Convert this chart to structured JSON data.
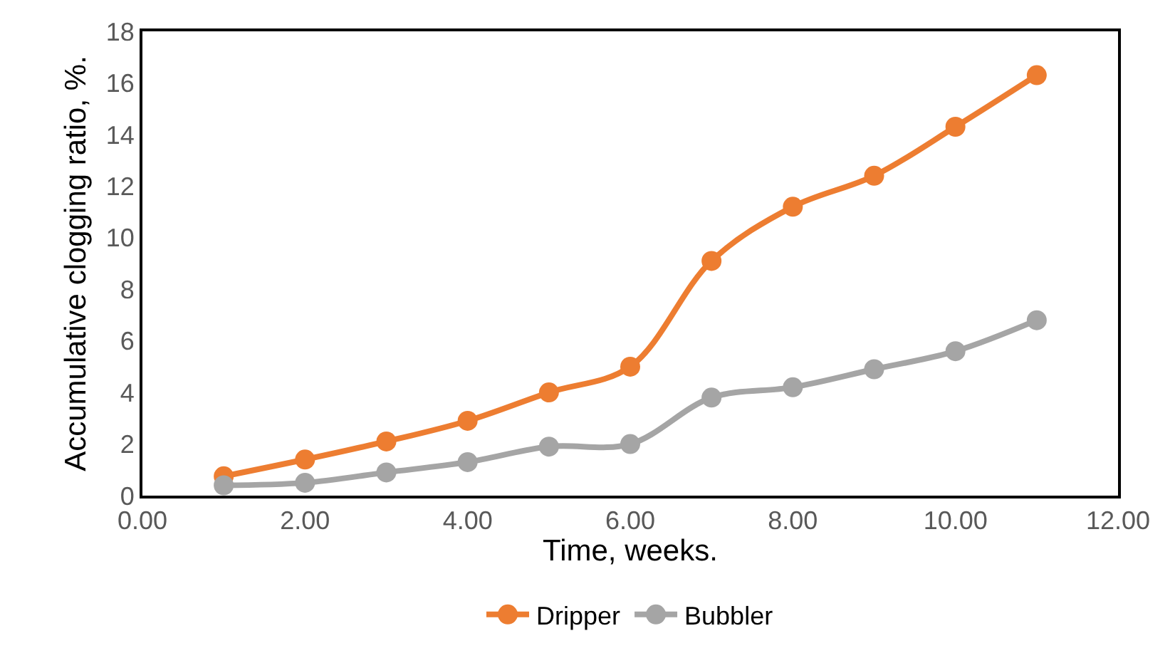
{
  "chart_data": {
    "type": "line",
    "xlabel": "Time, weeks.",
    "ylabel": "Accumulative clogging ratio, %.",
    "x": [
      1,
      2,
      3,
      4,
      5,
      6,
      7,
      8,
      9,
      10,
      11
    ],
    "series": [
      {
        "name": "Dripper",
        "color": "#ed7d31",
        "values": [
          0.75,
          1.4,
          2.1,
          2.9,
          4.0,
          5.0,
          9.1,
          11.2,
          12.4,
          14.3,
          16.3
        ]
      },
      {
        "name": "Bubbler",
        "color": "#a5a5a5",
        "values": [
          0.4,
          0.5,
          0.9,
          1.3,
          1.9,
          2.0,
          3.8,
          4.2,
          4.9,
          5.6,
          6.8
        ]
      }
    ],
    "xlim": [
      0,
      12
    ],
    "xticks": [
      {
        "value": 0,
        "label": "0.00"
      },
      {
        "value": 2,
        "label": "2.00"
      },
      {
        "value": 4,
        "label": "4.00"
      },
      {
        "value": 6,
        "label": "6.00"
      },
      {
        "value": 8,
        "label": "8.00"
      },
      {
        "value": 10,
        "label": "10.00"
      },
      {
        "value": 12,
        "label": "12.00"
      }
    ],
    "ylim": [
      0,
      18
    ],
    "yticks": [
      0,
      2,
      4,
      6,
      8,
      10,
      12,
      14,
      16,
      18
    ],
    "legend": "bottom",
    "marker": "circle",
    "line_style": "solid"
  }
}
